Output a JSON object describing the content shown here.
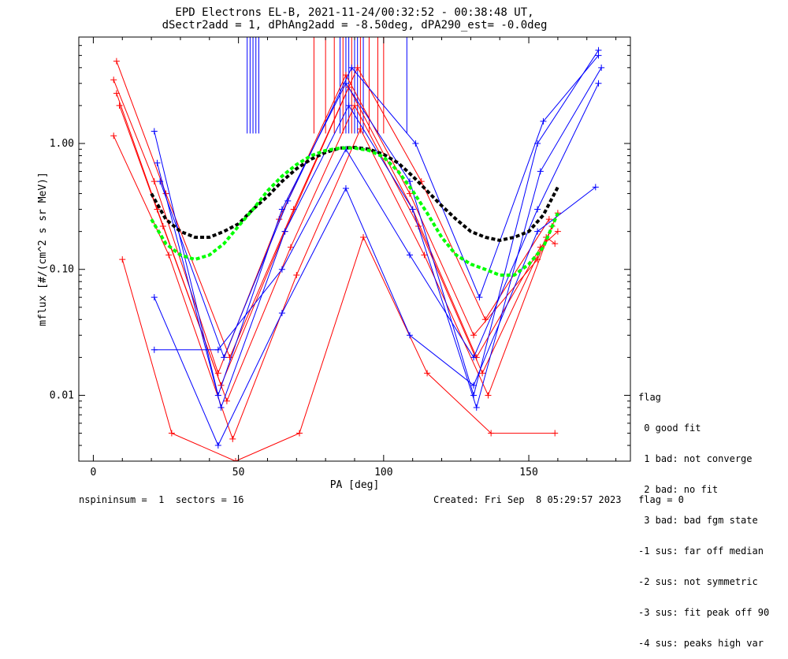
{
  "title_line1": "EPD Electrons EL-B, 2021-11-24/00:32:52 - 00:38:48 UT,",
  "title_line2": "dSectr2add = 1, dPhAng2add = -8.50deg, dPA290_est=  -0.0deg",
  "footer": {
    "left": "nspininsum =  1  sectors = 16",
    "right": "Created: Fri Sep  8 05:29:57 2023   flag = 0"
  },
  "legend": {
    "title": "flag",
    "items": [
      " 0 good fit",
      " 1 bad: not converge",
      " 2 bad: no fit",
      " 3 bad: bad fgm state",
      "-1 sus: far off median",
      "-2 sus: not symmetric",
      "-3 sus: fit peak off 90",
      "-4 sus: peaks high var"
    ]
  },
  "chart_data": {
    "type": "line",
    "xlabel": "PA [deg]",
    "ylabel": "mflux [#/(cm^2 s sr MeV)]",
    "xlim": [
      -5,
      185
    ],
    "ylim": [
      0.003,
      7
    ],
    "yscale": "log",
    "xticks": [
      0,
      50,
      100,
      150
    ],
    "xtick_labels": [
      "0",
      "50",
      "100",
      "150"
    ],
    "yticks": [
      0.01,
      0.1,
      1.0
    ],
    "ytick_labels": [
      "0.01",
      "0.10",
      "1.00"
    ],
    "colors": {
      "red": "#ff0000",
      "blue": "#0000ff",
      "green": "#00ff00",
      "black": "#000000"
    },
    "series": [
      {
        "color": "red",
        "marker": "+",
        "x": [
          7,
          21,
          43,
          64,
          87,
          109,
          131,
          153,
          160
        ],
        "y": [
          3.2,
          0.5,
          0.015,
          0.25,
          3.5,
          0.4,
          0.03,
          0.12,
          0.28
        ]
      },
      {
        "color": "red",
        "marker": "+",
        "x": [
          8,
          22,
          44,
          66,
          88,
          110,
          132,
          154,
          160
        ],
        "y": [
          2.5,
          0.3,
          0.012,
          0.2,
          2.8,
          0.3,
          0.02,
          0.15,
          0.2
        ]
      },
      {
        "color": "red",
        "marker": "+",
        "x": [
          9,
          24,
          46,
          68,
          90,
          112,
          134,
          156,
          159
        ],
        "y": [
          2.0,
          0.22,
          0.009,
          0.15,
          2.0,
          0.22,
          0.015,
          0.18,
          0.16
        ]
      },
      {
        "color": "red",
        "marker": "+",
        "x": [
          7,
          26,
          48,
          70,
          92,
          114,
          136,
          158
        ],
        "y": [
          1.15,
          0.13,
          0.0045,
          0.09,
          1.3,
          0.13,
          0.01,
          0.22
        ]
      },
      {
        "color": "red",
        "marker": "+",
        "x": [
          10,
          27,
          49,
          71,
          93,
          115,
          137,
          159
        ],
        "y": [
          0.12,
          0.005,
          0.003,
          0.005,
          0.18,
          0.015,
          0.005,
          0.005
        ]
      },
      {
        "color": "red",
        "marker": "+",
        "x": [
          8,
          25,
          47,
          69,
          91,
          113,
          135,
          157
        ],
        "y": [
          4.5,
          0.4,
          0.02,
          0.3,
          4.0,
          0.5,
          0.04,
          0.25
        ]
      },
      {
        "color": "blue",
        "marker": "+",
        "x": [
          21,
          43,
          65,
          87,
          109,
          131,
          153,
          174
        ],
        "y": [
          1.25,
          0.01,
          0.3,
          3.0,
          0.5,
          0.01,
          1.0,
          5.5
        ]
      },
      {
        "color": "blue",
        "marker": "+",
        "x": [
          22,
          44,
          66,
          88,
          110,
          132,
          154,
          175
        ],
        "y": [
          0.7,
          0.008,
          0.2,
          2.0,
          0.3,
          0.008,
          0.6,
          4.0
        ]
      },
      {
        "color": "blue",
        "marker": "+",
        "x": [
          21,
          43,
          65,
          87,
          109,
          131,
          153,
          173
        ],
        "y": [
          0.06,
          0.004,
          0.045,
          0.44,
          0.03,
          0.012,
          0.2,
          0.45
        ]
      },
      {
        "color": "blue",
        "marker": "+",
        "x": [
          21,
          43,
          65,
          87,
          109,
          131,
          153,
          174
        ],
        "y": [
          0.023,
          0.023,
          0.1,
          0.9,
          0.13,
          0.02,
          0.3,
          3.0
        ]
      },
      {
        "color": "blue",
        "marker": "+",
        "x": [
          23,
          45,
          67,
          89,
          111,
          133,
          155,
          174
        ],
        "y": [
          0.5,
          0.02,
          0.35,
          4.0,
          1.0,
          0.06,
          1.5,
          5.0
        ]
      }
    ],
    "fits": [
      {
        "color": "black",
        "style": "dashed",
        "x": [
          20,
          25,
          30,
          35,
          40,
          45,
          50,
          55,
          60,
          65,
          70,
          75,
          80,
          85,
          90,
          95,
          100,
          105,
          110,
          115,
          120,
          125,
          130,
          135,
          140,
          145,
          150,
          155,
          160
        ],
        "y": [
          0.4,
          0.25,
          0.2,
          0.18,
          0.18,
          0.2,
          0.23,
          0.3,
          0.38,
          0.5,
          0.63,
          0.75,
          0.85,
          0.92,
          0.93,
          0.9,
          0.82,
          0.7,
          0.55,
          0.42,
          0.32,
          0.25,
          0.2,
          0.18,
          0.17,
          0.18,
          0.2,
          0.27,
          0.45
        ]
      },
      {
        "color": "green",
        "style": "dashed",
        "x": [
          20,
          25,
          30,
          35,
          40,
          45,
          50,
          55,
          60,
          65,
          70,
          75,
          80,
          85,
          90,
          95,
          100,
          105,
          110,
          115,
          120,
          125,
          130,
          135,
          140,
          145,
          150,
          155,
          160
        ],
        "y": [
          0.25,
          0.16,
          0.13,
          0.12,
          0.13,
          0.16,
          0.22,
          0.3,
          0.42,
          0.55,
          0.68,
          0.8,
          0.88,
          0.92,
          0.92,
          0.88,
          0.78,
          0.6,
          0.42,
          0.28,
          0.18,
          0.13,
          0.11,
          0.1,
          0.09,
          0.09,
          0.11,
          0.15,
          0.28
        ]
      }
    ],
    "vlines": [
      {
        "color": "blue",
        "x": [
          53,
          54,
          55,
          56,
          57
        ]
      },
      {
        "color": "red",
        "x": [
          76,
          80,
          83,
          86,
          89,
          92,
          95,
          98,
          100
        ]
      },
      {
        "color": "blue",
        "x": [
          85,
          87,
          88,
          90,
          91,
          93,
          108
        ]
      }
    ]
  }
}
